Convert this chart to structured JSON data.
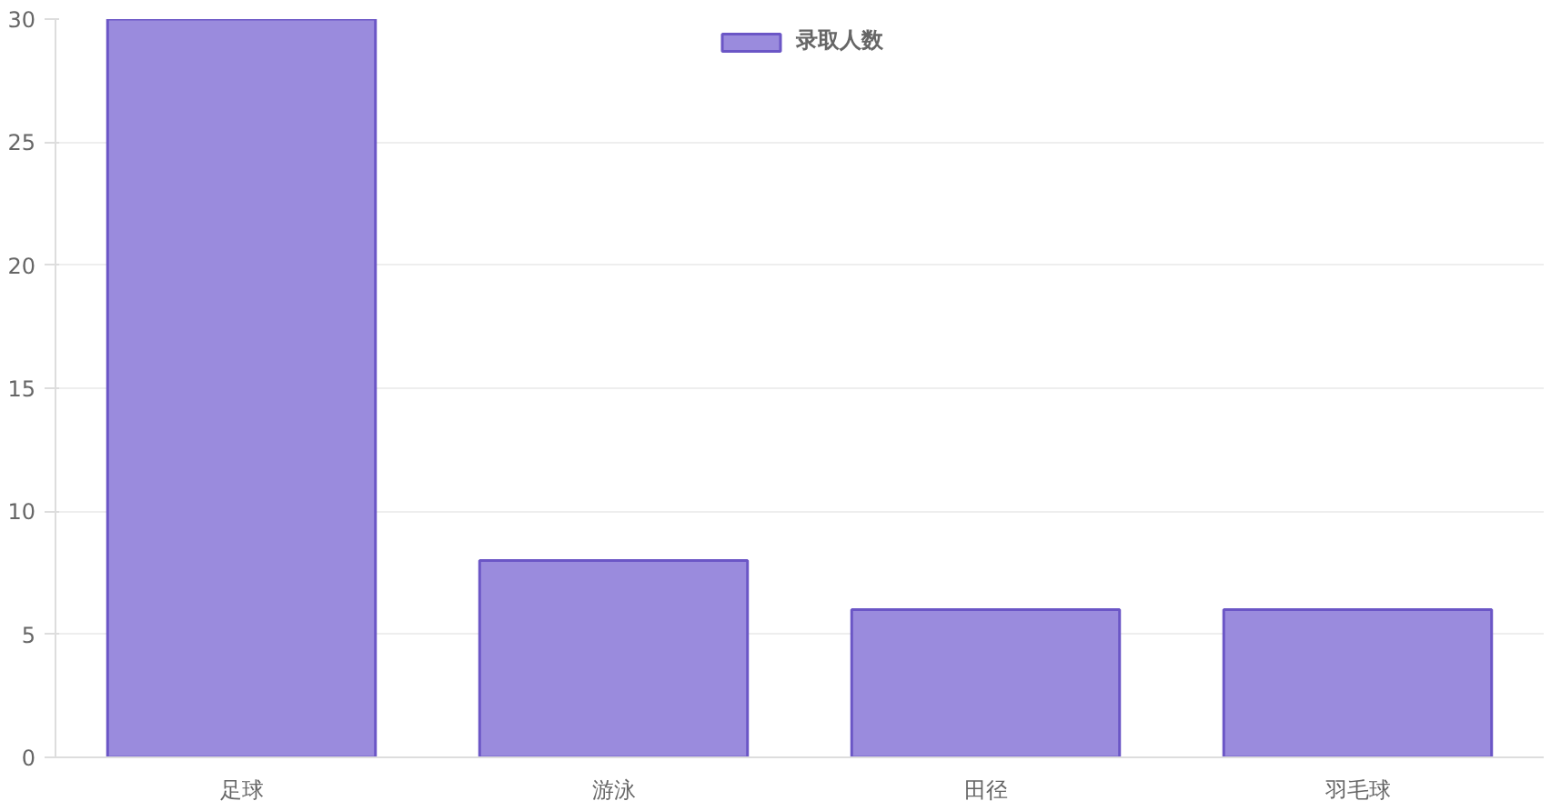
{
  "chart_data": {
    "type": "bar",
    "categories": [
      "足球",
      "游泳",
      "田径",
      "羽毛球"
    ],
    "series": [
      {
        "name": "录取人数",
        "color": "#9a8bdd",
        "values": [
          30,
          8,
          6,
          6
        ]
      }
    ],
    "ylim": [
      0,
      30
    ],
    "yticks": [
      0,
      5,
      10,
      15,
      20,
      25,
      30
    ],
    "grid": "y",
    "legend": "top"
  }
}
